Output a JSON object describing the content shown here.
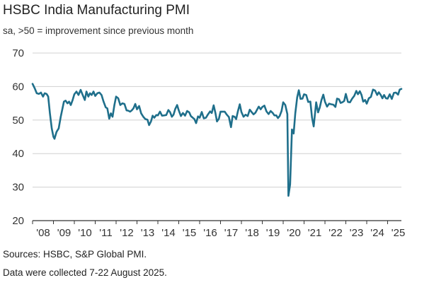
{
  "chart_data": {
    "type": "line",
    "title": "HSBC India Manufacturing PMI",
    "subtitle": "sa, >50 = improvement since previous month",
    "xlabel": "",
    "ylabel": "",
    "ylim": [
      20,
      70
    ],
    "yticks": [
      20,
      30,
      40,
      50,
      60,
      70
    ],
    "xlim": [
      2008.0,
      2025.66
    ],
    "xtick_labels": [
      "'08",
      "'09",
      "'10",
      "'11",
      "'12",
      "'13",
      "'14",
      "'15",
      "'16",
      "'17",
      "'18",
      "'19",
      "'20",
      "'21",
      "'22",
      "'23",
      "'24",
      "'25"
    ],
    "grid": "horizontal",
    "line_color": "#1f6f8b",
    "series": [
      {
        "name": "HSBC India Manufacturing PMI",
        "points": [
          [
            2008.0,
            60.8
          ],
          [
            2008.1,
            59.5
          ],
          [
            2008.2,
            58.0
          ],
          [
            2008.3,
            57.8
          ],
          [
            2008.4,
            58.2
          ],
          [
            2008.5,
            57.0
          ],
          [
            2008.58,
            58.0
          ],
          [
            2008.67,
            57.8
          ],
          [
            2008.75,
            57.0
          ],
          [
            2008.83,
            52.0
          ],
          [
            2008.92,
            47.5
          ],
          [
            2009.0,
            45.0
          ],
          [
            2009.05,
            44.4
          ],
          [
            2009.15,
            46.5
          ],
          [
            2009.25,
            47.5
          ],
          [
            2009.35,
            51.0
          ],
          [
            2009.5,
            55.5
          ],
          [
            2009.58,
            55.8
          ],
          [
            2009.67,
            55.0
          ],
          [
            2009.75,
            55.5
          ],
          [
            2009.83,
            54.5
          ],
          [
            2009.92,
            56.0
          ],
          [
            2010.0,
            57.7
          ],
          [
            2010.1,
            58.5
          ],
          [
            2010.2,
            57.5
          ],
          [
            2010.3,
            59.0
          ],
          [
            2010.4,
            57.5
          ],
          [
            2010.5,
            56.0
          ],
          [
            2010.58,
            58.5
          ],
          [
            2010.67,
            57.0
          ],
          [
            2010.75,
            58.0
          ],
          [
            2010.83,
            57.5
          ],
          [
            2010.92,
            58.5
          ],
          [
            2011.0,
            57.2
          ],
          [
            2011.1,
            58.0
          ],
          [
            2011.2,
            58.2
          ],
          [
            2011.3,
            57.5
          ],
          [
            2011.4,
            55.5
          ],
          [
            2011.5,
            53.8
          ],
          [
            2011.58,
            53.5
          ],
          [
            2011.67,
            50.4
          ],
          [
            2011.75,
            52.0
          ],
          [
            2011.83,
            51.0
          ],
          [
            2011.92,
            54.5
          ],
          [
            2012.0,
            57.0
          ],
          [
            2012.1,
            56.5
          ],
          [
            2012.2,
            54.5
          ],
          [
            2012.3,
            55.0
          ],
          [
            2012.4,
            54.8
          ],
          [
            2012.5,
            52.9
          ],
          [
            2012.58,
            52.8
          ],
          [
            2012.67,
            52.5
          ],
          [
            2012.75,
            52.9
          ],
          [
            2012.83,
            53.5
          ],
          [
            2012.92,
            54.8
          ],
          [
            2013.0,
            53.2
          ],
          [
            2013.1,
            54.2
          ],
          [
            2013.2,
            52.0
          ],
          [
            2013.3,
            51.0
          ],
          [
            2013.4,
            50.3
          ],
          [
            2013.5,
            50.1
          ],
          [
            2013.58,
            48.5
          ],
          [
            2013.67,
            49.6
          ],
          [
            2013.75,
            51.3
          ],
          [
            2013.83,
            50.7
          ],
          [
            2013.92,
            51.5
          ],
          [
            2014.0,
            51.4
          ],
          [
            2014.1,
            52.5
          ],
          [
            2014.2,
            51.3
          ],
          [
            2014.3,
            51.4
          ],
          [
            2014.4,
            51.5
          ],
          [
            2014.5,
            53.0
          ],
          [
            2014.58,
            52.4
          ],
          [
            2014.67,
            51.0
          ],
          [
            2014.75,
            51.6
          ],
          [
            2014.83,
            53.3
          ],
          [
            2014.92,
            54.5
          ],
          [
            2015.0,
            52.9
          ],
          [
            2015.1,
            51.2
          ],
          [
            2015.2,
            52.1
          ],
          [
            2015.3,
            51.3
          ],
          [
            2015.4,
            52.7
          ],
          [
            2015.5,
            52.3
          ],
          [
            2015.58,
            51.2
          ],
          [
            2015.67,
            50.7
          ],
          [
            2015.75,
            50.3
          ],
          [
            2015.83,
            49.1
          ],
          [
            2015.92,
            51.1
          ],
          [
            2016.0,
            50.7
          ],
          [
            2016.1,
            52.4
          ],
          [
            2016.2,
            50.5
          ],
          [
            2016.3,
            50.7
          ],
          [
            2016.4,
            51.7
          ],
          [
            2016.5,
            52.6
          ],
          [
            2016.58,
            52.1
          ],
          [
            2016.67,
            54.4
          ],
          [
            2016.75,
            52.3
          ],
          [
            2016.83,
            49.6
          ],
          [
            2016.92,
            50.4
          ],
          [
            2017.0,
            52.5
          ],
          [
            2017.1,
            52.5
          ],
          [
            2017.2,
            52.5
          ],
          [
            2017.3,
            51.6
          ],
          [
            2017.4,
            50.9
          ],
          [
            2017.5,
            47.9
          ],
          [
            2017.58,
            51.2
          ],
          [
            2017.67,
            51.0
          ],
          [
            2017.75,
            50.3
          ],
          [
            2017.83,
            52.6
          ],
          [
            2017.92,
            54.7
          ],
          [
            2018.0,
            52.4
          ],
          [
            2018.1,
            51.0
          ],
          [
            2018.2,
            51.6
          ],
          [
            2018.3,
            51.2
          ],
          [
            2018.4,
            53.1
          ],
          [
            2018.5,
            52.3
          ],
          [
            2018.58,
            51.7
          ],
          [
            2018.67,
            52.2
          ],
          [
            2018.75,
            53.1
          ],
          [
            2018.83,
            54.0
          ],
          [
            2018.92,
            53.2
          ],
          [
            2019.0,
            53.9
          ],
          [
            2019.1,
            54.3
          ],
          [
            2019.2,
            52.6
          ],
          [
            2019.3,
            51.8
          ],
          [
            2019.4,
            52.7
          ],
          [
            2019.5,
            52.1
          ],
          [
            2019.58,
            51.4
          ],
          [
            2019.67,
            51.4
          ],
          [
            2019.75,
            50.6
          ],
          [
            2019.83,
            51.2
          ],
          [
            2019.92,
            52.7
          ],
          [
            2020.0,
            55.3
          ],
          [
            2020.1,
            54.5
          ],
          [
            2020.2,
            51.8
          ],
          [
            2020.25,
            27.4
          ],
          [
            2020.33,
            30.8
          ],
          [
            2020.42,
            47.2
          ],
          [
            2020.5,
            46.0
          ],
          [
            2020.58,
            52.0
          ],
          [
            2020.67,
            56.8
          ],
          [
            2020.75,
            58.9
          ],
          [
            2020.83,
            56.3
          ],
          [
            2020.92,
            56.4
          ],
          [
            2021.0,
            57.7
          ],
          [
            2021.1,
            57.5
          ],
          [
            2021.2,
            55.4
          ],
          [
            2021.3,
            55.5
          ],
          [
            2021.38,
            50.8
          ],
          [
            2021.46,
            48.1
          ],
          [
            2021.58,
            55.3
          ],
          [
            2021.67,
            52.3
          ],
          [
            2021.75,
            53.7
          ],
          [
            2021.83,
            55.9
          ],
          [
            2021.92,
            57.6
          ],
          [
            2022.0,
            55.5
          ],
          [
            2022.1,
            54.0
          ],
          [
            2022.2,
            54.9
          ],
          [
            2022.3,
            54.7
          ],
          [
            2022.4,
            54.6
          ],
          [
            2022.5,
            53.9
          ],
          [
            2022.58,
            56.4
          ],
          [
            2022.67,
            56.2
          ],
          [
            2022.75,
            55.1
          ],
          [
            2022.83,
            55.3
          ],
          [
            2022.92,
            55.7
          ],
          [
            2023.0,
            57.8
          ],
          [
            2023.1,
            55.4
          ],
          [
            2023.2,
            55.3
          ],
          [
            2023.3,
            56.4
          ],
          [
            2023.4,
            57.2
          ],
          [
            2023.5,
            58.7
          ],
          [
            2023.58,
            57.7
          ],
          [
            2023.67,
            58.6
          ],
          [
            2023.75,
            57.5
          ],
          [
            2023.83,
            55.5
          ],
          [
            2023.92,
            56.0
          ],
          [
            2024.0,
            54.9
          ],
          [
            2024.1,
            56.5
          ],
          [
            2024.2,
            56.9
          ],
          [
            2024.3,
            59.1
          ],
          [
            2024.4,
            58.8
          ],
          [
            2024.5,
            57.5
          ],
          [
            2024.58,
            58.3
          ],
          [
            2024.67,
            57.5
          ],
          [
            2024.75,
            56.5
          ],
          [
            2024.83,
            57.5
          ],
          [
            2024.92,
            56.5
          ],
          [
            2025.0,
            56.4
          ],
          [
            2025.1,
            57.7
          ],
          [
            2025.2,
            56.3
          ],
          [
            2025.3,
            58.1
          ],
          [
            2025.4,
            58.2
          ],
          [
            2025.5,
            57.6
          ],
          [
            2025.58,
            59.1
          ],
          [
            2025.66,
            59.3
          ]
        ]
      }
    ]
  },
  "notes": {
    "sources": "Sources: HSBC, S&P Global PMI.",
    "collection": "Data were collected 7-22 August 2025."
  }
}
